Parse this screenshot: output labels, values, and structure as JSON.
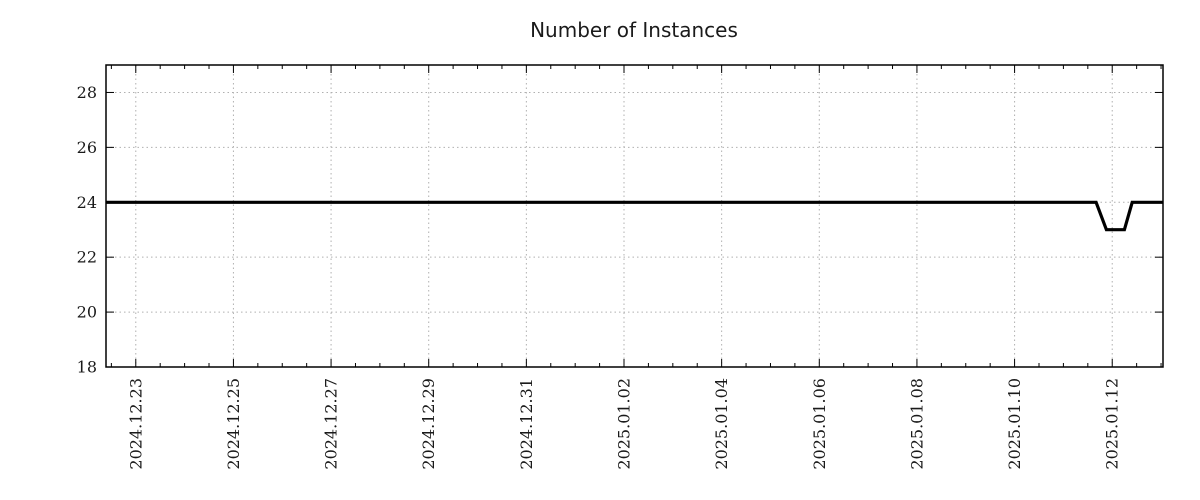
{
  "page": {
    "background": "#ffffff"
  },
  "chart_data": {
    "type": "line",
    "title": "Number of Instances",
    "xlabel": "",
    "ylabel": "",
    "legend": "none",
    "grid": true,
    "colors": {
      "line": "#000000",
      "grid": "#b0b0b0",
      "axis": "#000000",
      "text": "#1a1a1a",
      "background": "#ffffff"
    },
    "ylim": [
      18,
      29
    ],
    "yticks": [
      18,
      20,
      22,
      24,
      26,
      28
    ],
    "x_unit": "days since 2024-12-23 00:00",
    "xlim": [
      -0.61,
      21.04
    ],
    "minor_tick_interval_days": 0.5,
    "xticks": [
      {
        "label": "2024.12.23",
        "day": 0
      },
      {
        "label": "2024.12.25",
        "day": 2
      },
      {
        "label": "2024.12.27",
        "day": 4
      },
      {
        "label": "2024.12.29",
        "day": 6
      },
      {
        "label": "2024.12.31",
        "day": 8
      },
      {
        "label": "2025.01.02",
        "day": 10
      },
      {
        "label": "2025.01.04",
        "day": 12
      },
      {
        "label": "2025.01.06",
        "day": 14
      },
      {
        "label": "2025.01.08",
        "day": 16
      },
      {
        "label": "2025.01.10",
        "day": 18
      },
      {
        "label": "2025.01.12",
        "day": 20
      }
    ],
    "series": [
      {
        "name": "instances",
        "baseline_value": 24,
        "dip_value": 23,
        "points": [
          [
            -0.61,
            24
          ],
          [
            19.67,
            24
          ],
          [
            19.88,
            23
          ],
          [
            20.25,
            23
          ],
          [
            20.41,
            24
          ],
          [
            21.04,
            24
          ]
        ]
      }
    ]
  }
}
